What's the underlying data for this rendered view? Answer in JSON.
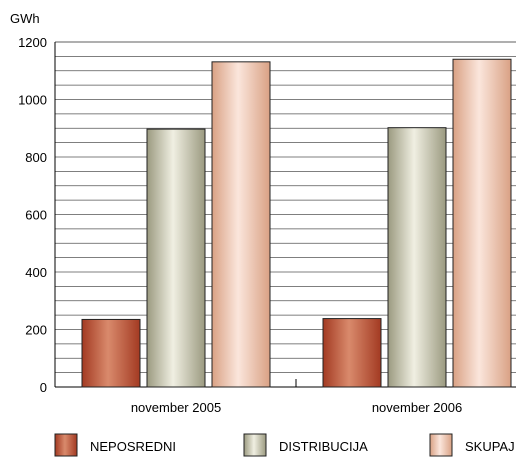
{
  "chart_data": {
    "type": "bar",
    "unit_label": "GWh",
    "categories": [
      "november 2005",
      "november 2006"
    ],
    "series": [
      {
        "name": "NEPOSREDNI",
        "values": [
          235,
          238
        ]
      },
      {
        "name": "DISTRIBUCIJA",
        "values": [
          897,
          902
        ]
      },
      {
        "name": "SKUPAJ",
        "values": [
          1131,
          1140
        ]
      }
    ],
    "ylim": [
      0,
      1200
    ],
    "y_ticks": [
      "0",
      "200",
      "400",
      "600",
      "800",
      "1000",
      "1200"
    ],
    "grid": true,
    "legend_position": "bottom",
    "colors": {
      "NEPOSREDNI": [
        "#a33a22",
        "#d98a6c",
        "#a33a22"
      ],
      "DISTRIBUCIJA": [
        "#9b9a80",
        "#f0efe2",
        "#9b9a80"
      ],
      "SKUPAJ": [
        "#d9a184",
        "#fbe6dc",
        "#d9a184"
      ]
    }
  }
}
